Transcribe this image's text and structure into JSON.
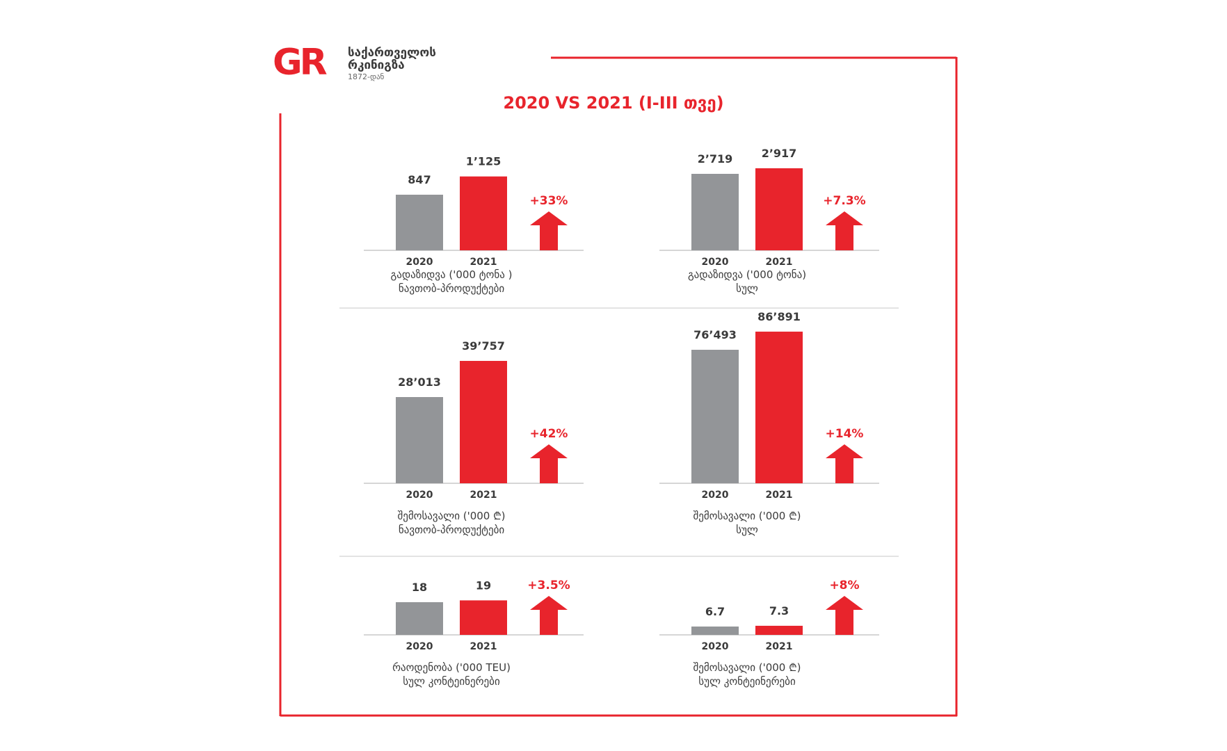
{
  "logo": {
    "mark": "GR",
    "name_line1": "საქართველოს",
    "name_line2": "რკინიგზა",
    "since": "1872-დან"
  },
  "title": "2020 VS 2021 (I-III თვე)",
  "colors": {
    "y2020": "#939598",
    "y2021": "#e8242c",
    "arrow": "#e8242c",
    "label": "#3a3a3a",
    "frame": "#e8242c"
  },
  "icons": {
    "growth": "arrow-up-icon"
  },
  "chart_data": [
    {
      "type": "bar",
      "categories": [
        "2020",
        "2021"
      ],
      "values": [
        847,
        1125
      ],
      "value_labels": [
        "847",
        "1’125"
      ],
      "change": "+33%",
      "caption_line1": "გადაზიდვა ('000 ტონა )",
      "caption_line2": "ნავთობ-პროდუქტები"
    },
    {
      "type": "bar",
      "categories": [
        "2020",
        "2021"
      ],
      "values": [
        2719,
        2917
      ],
      "value_labels": [
        "2’719",
        "2’917"
      ],
      "change": "+7.3%",
      "caption_line1": "გადაზიდვა ('000 ტონა)",
      "caption_line2": "სულ"
    },
    {
      "type": "bar",
      "categories": [
        "2020",
        "2021"
      ],
      "values": [
        28013,
        39757
      ],
      "value_labels": [
        "28’013",
        "39’757"
      ],
      "change": "+42%",
      "caption_line1": "შემოსავალი  ('000 ₾)",
      "caption_line2": "ნავთობ-პროდუქტები"
    },
    {
      "type": "bar",
      "categories": [
        "2020",
        "2021"
      ],
      "values": [
        76493,
        86891
      ],
      "value_labels": [
        "76’493",
        "86’891"
      ],
      "change": "+14%",
      "caption_line1": "შემოსავალი ('000 ₾)",
      "caption_line2": "სულ"
    },
    {
      "type": "bar",
      "categories": [
        "2020",
        "2021"
      ],
      "values": [
        18,
        19
      ],
      "value_labels": [
        "18",
        "19"
      ],
      "change": "+3.5%",
      "caption_line1": "რაოდენობა ('000 TEU)",
      "caption_line2": "სულ კონტეინერები"
    },
    {
      "type": "bar",
      "categories": [
        "2020",
        "2021"
      ],
      "values": [
        6.7,
        7.3
      ],
      "value_labels": [
        "6.7",
        "7.3"
      ],
      "change": "+8%",
      "caption_line1": "შემოსავალი ('000 ₾)",
      "caption_line2": "სულ კონტეინერები"
    }
  ]
}
